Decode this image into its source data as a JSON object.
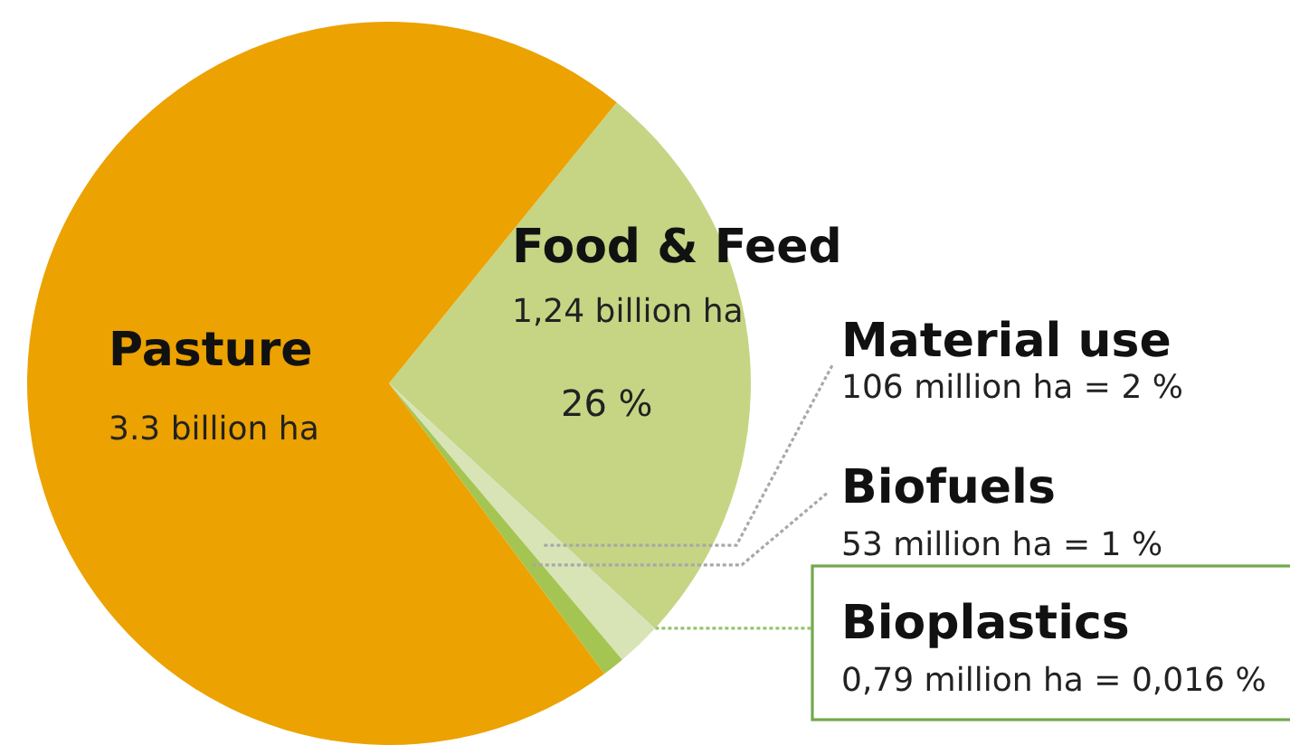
{
  "chart_data": {
    "type": "pie",
    "categories": [
      "Food & Feed",
      "Bioplastics",
      "Material use",
      "Biofuels",
      "Pasture"
    ],
    "values": [
      26,
      0.016,
      2,
      1,
      70.984
    ],
    "colors": [
      "#c5d584",
      "#6fa84a",
      "#d8e4b6",
      "#a5c552",
      "#eca200"
    ],
    "value_labels": [
      "26 %",
      "0,79 million ha = 0,016 %",
      "106 million ha = 2 %",
      "53 million ha = 1 %",
      null
    ],
    "annotations": [
      {
        "text": "1,24 billion ha",
        "x": "Food & Feed"
      },
      {
        "text": "3.3 billion ha",
        "x": "Pasture"
      }
    ]
  }
}
